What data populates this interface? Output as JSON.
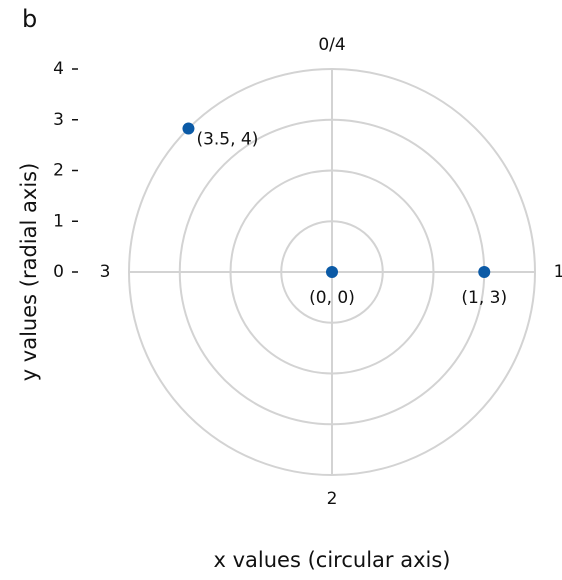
{
  "chart_data": {
    "type": "polar_scatter",
    "panel_label": "b",
    "x_label": "x values (circular axis)",
    "y_label": "y values (radial axis)",
    "x": [
      0,
      1,
      3.5
    ],
    "values": [
      0,
      3,
      4
    ],
    "value_labels": [
      "(0, 0)",
      "(1, 3)",
      "(3.5, 4)"
    ],
    "color": "#0b5aa6",
    "grid_color": "#d3d3d3",
    "xlim": [
      0,
      4
    ],
    "xticks": [
      {
        "value": 0,
        "label": "0/4"
      },
      1,
      2,
      3
    ],
    "ylim": [
      0,
      4
    ],
    "yticks": [
      0,
      1,
      2,
      3,
      4
    ],
    "grid": true
  }
}
